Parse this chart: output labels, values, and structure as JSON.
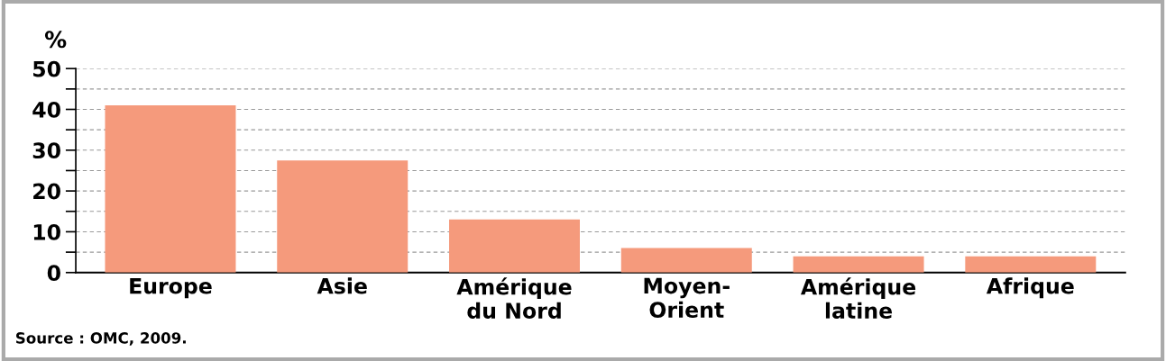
{
  "chart_data": {
    "type": "bar",
    "ylabel": "%",
    "categories": [
      "Europe",
      "Asie",
      "Amérique\ndu Nord",
      "Moyen-\nOrient",
      "Amérique\nlatine",
      "Afrique"
    ],
    "values": [
      41,
      27.5,
      13,
      6,
      4,
      4
    ],
    "color": "#f59a7c",
    "ylim": [
      0,
      50
    ],
    "yticks": [
      0,
      {
        "value": 5,
        "label": null
      },
      10,
      {
        "value": 15,
        "label": null
      },
      20,
      {
        "value": 25,
        "label": null
      },
      30,
      {
        "value": 35,
        "label": null
      },
      40,
      {
        "value": 45,
        "label": null
      },
      50
    ],
    "grid": "y",
    "annotations": [
      "Source : OMC, 2009."
    ]
  }
}
